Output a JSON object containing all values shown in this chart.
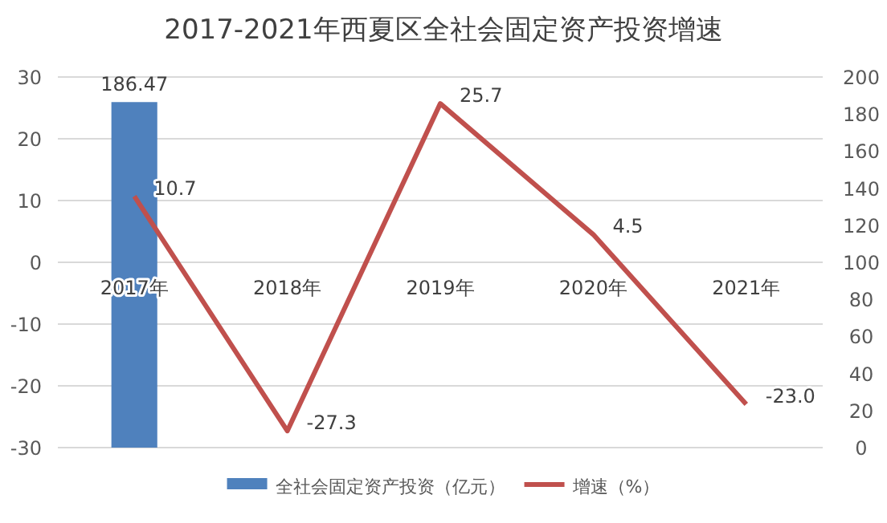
{
  "chart_data": {
    "type": "bar",
    "title": "2017-2021年西夏区全社会固定资产投资增速",
    "categories": [
      "2017年",
      "2018年",
      "2019年",
      "2020年",
      "2021年"
    ],
    "series": [
      {
        "name": "全社会固定资产投资（亿元）",
        "axis": "y2",
        "color": "#4f81bd",
        "values": [
          186.47,
          null,
          null,
          null,
          null
        ],
        "value_labels": [
          "186.47",
          null,
          null,
          null,
          null
        ]
      },
      {
        "name": "增速（%）",
        "type": "line",
        "color": "#c0504d",
        "values": [
          10.7,
          -27.3,
          25.7,
          4.5,
          -23.0
        ],
        "value_labels": [
          "10.7",
          "-27.3",
          "25.7",
          "4.5",
          "-23.0"
        ]
      }
    ],
    "ylim": [
      -30,
      30
    ],
    "yticks": [
      -30,
      -20,
      -10,
      0,
      10,
      20,
      30
    ],
    "y2lim": [
      0,
      200
    ],
    "y2ticks": [
      0,
      20,
      40,
      60,
      80,
      100,
      120,
      140,
      160,
      180,
      200
    ],
    "grid": "y",
    "legend": "bottom"
  }
}
